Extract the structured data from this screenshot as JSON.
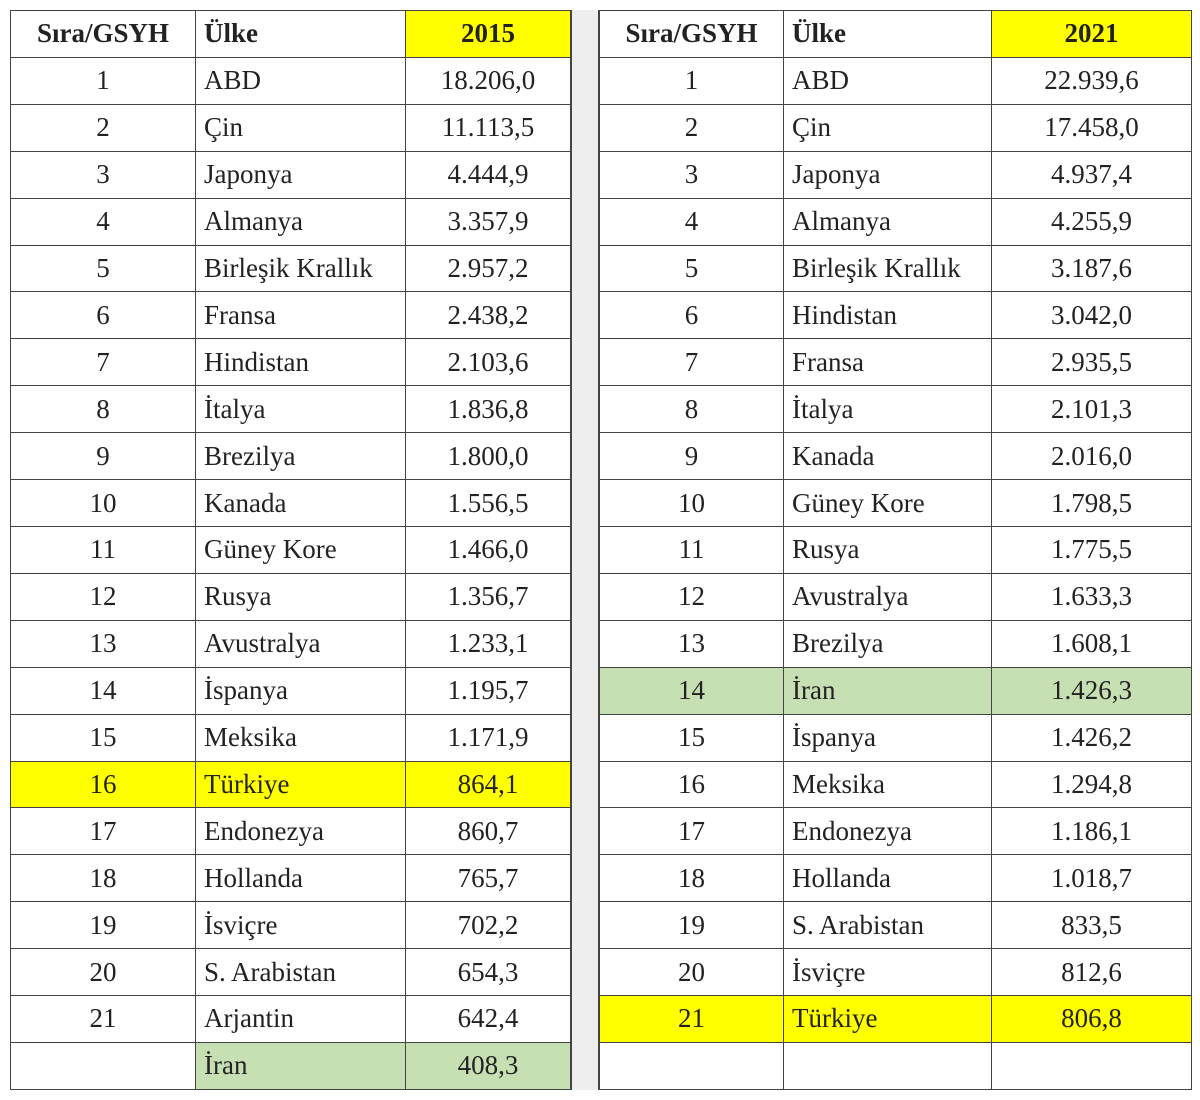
{
  "colors": {
    "highlight_yellow": "#ffff00",
    "highlight_green": "#c6e0b4"
  },
  "tables": [
    {
      "headers": [
        "Sıra/GSYH",
        "Ülke",
        "2015"
      ],
      "rows": [
        {
          "rank": "1",
          "country": "ABD",
          "value": "18.206,0"
        },
        {
          "rank": "2",
          "country": "Çin",
          "value": "11.113,5"
        },
        {
          "rank": "3",
          "country": "Japonya",
          "value": "4.444,9"
        },
        {
          "rank": "4",
          "country": "Almanya",
          "value": "3.357,9"
        },
        {
          "rank": "5",
          "country": "Birleşik Krallık",
          "value": "2.957,2"
        },
        {
          "rank": "6",
          "country": "Fransa",
          "value": "2.438,2"
        },
        {
          "rank": "7",
          "country": "Hindistan",
          "value": "2.103,6"
        },
        {
          "rank": "8",
          "country": "İtalya",
          "value": "1.836,8"
        },
        {
          "rank": "9",
          "country": "Brezilya",
          "value": "1.800,0"
        },
        {
          "rank": "10",
          "country": "Kanada",
          "value": "1.556,5"
        },
        {
          "rank": "11",
          "country": "Güney Kore",
          "value": "1.466,0"
        },
        {
          "rank": "12",
          "country": "Rusya",
          "value": "1.356,7"
        },
        {
          "rank": "13",
          "country": "Avustralya",
          "value": "1.233,1"
        },
        {
          "rank": "14",
          "country": "İspanya",
          "value": "1.195,7"
        },
        {
          "rank": "15",
          "country": "Meksika",
          "value": "1.171,9"
        },
        {
          "rank": "16",
          "country": "Türkiye",
          "value": "864,1",
          "highlight": "yellow"
        },
        {
          "rank": "17",
          "country": "Endonezya",
          "value": "860,7"
        },
        {
          "rank": "18",
          "country": "Hollanda",
          "value": "765,7"
        },
        {
          "rank": "19",
          "country": "İsviçre",
          "value": "702,2"
        },
        {
          "rank": "20",
          "country": "S. Arabistan",
          "value": "654,3"
        },
        {
          "rank": "21",
          "country": "Arjantin",
          "value": "642,4"
        },
        {
          "rank": "",
          "country": "İran",
          "value": "408,3",
          "highlight": "green-partial"
        }
      ]
    },
    {
      "headers": [
        "Sıra/GSYH",
        "Ülke",
        "2021"
      ],
      "rows": [
        {
          "rank": "1",
          "country": "ABD",
          "value": "22.939,6"
        },
        {
          "rank": "2",
          "country": "Çin",
          "value": "17.458,0"
        },
        {
          "rank": "3",
          "country": "Japonya",
          "value": "4.937,4"
        },
        {
          "rank": "4",
          "country": "Almanya",
          "value": "4.255,9"
        },
        {
          "rank": "5",
          "country": "Birleşik Krallık",
          "value": "3.187,6"
        },
        {
          "rank": "6",
          "country": "Hindistan",
          "value": "3.042,0"
        },
        {
          "rank": "7",
          "country": "Fransa",
          "value": "2.935,5"
        },
        {
          "rank": "8",
          "country": "İtalya",
          "value": "2.101,3"
        },
        {
          "rank": "9",
          "country": "Kanada",
          "value": "2.016,0"
        },
        {
          "rank": "10",
          "country": "Güney Kore",
          "value": "1.798,5"
        },
        {
          "rank": "11",
          "country": "Rusya",
          "value": "1.775,5"
        },
        {
          "rank": "12",
          "country": "Avustralya",
          "value": "1.633,3"
        },
        {
          "rank": "13",
          "country": "Brezilya",
          "value": "1.608,1"
        },
        {
          "rank": "14",
          "country": "İran",
          "value": "1.426,3",
          "highlight": "green"
        },
        {
          "rank": "15",
          "country": "İspanya",
          "value": "1.426,2"
        },
        {
          "rank": "16",
          "country": "Meksika",
          "value": "1.294,8"
        },
        {
          "rank": "17",
          "country": "Endonezya",
          "value": "1.186,1"
        },
        {
          "rank": "18",
          "country": "Hollanda",
          "value": "1.018,7"
        },
        {
          "rank": "19",
          "country": "S. Arabistan",
          "value": "833,5"
        },
        {
          "rank": "20",
          "country": "İsviçre",
          "value": "812,6"
        },
        {
          "rank": "21",
          "country": "Türkiye",
          "value": "806,8",
          "highlight": "yellow"
        },
        {
          "rank": "",
          "country": "",
          "value": ""
        }
      ]
    }
  ]
}
